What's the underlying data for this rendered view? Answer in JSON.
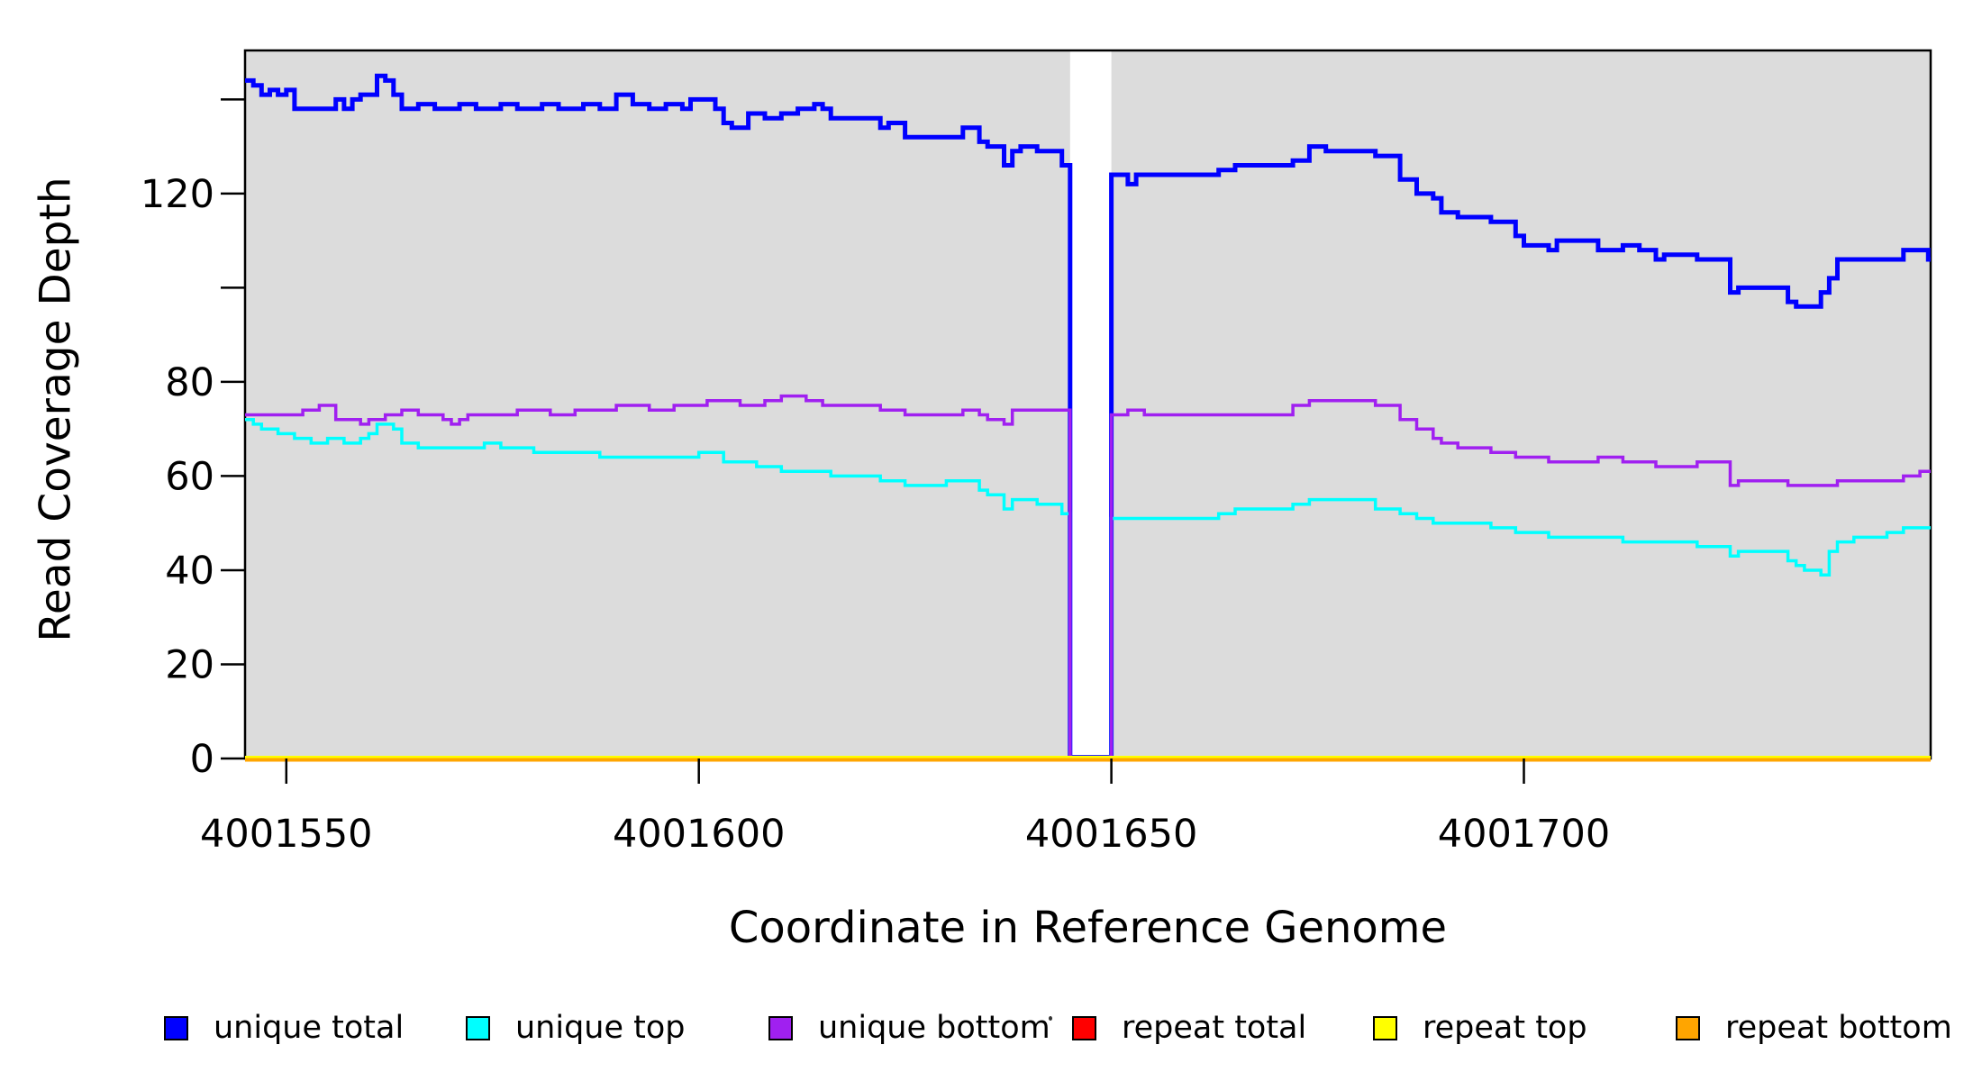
{
  "chart_data": {
    "type": "line",
    "subtype": "step",
    "title": "",
    "xlabel": "Coordinate in Reference Genome",
    "ylabel": "Read Coverage Depth",
    "plot_bg_color": "#DCDCDC",
    "page_bg_color": "#FFFFFF",
    "grid": "off",
    "legend_position": "bottom",
    "x_range": [
      4001545,
      4001749
    ],
    "y_range": [
      0,
      150
    ],
    "x_ticks": [
      {
        "value": 4001550,
        "label": "4001550"
      },
      {
        "value": 4001600,
        "label": "4001600"
      },
      {
        "value": 4001650,
        "label": "4001650"
      },
      {
        "value": 4001700,
        "label": "4001700"
      }
    ],
    "y_ticks": [
      {
        "value": 0,
        "label": "0"
      },
      {
        "value": 20,
        "label": "20"
      },
      {
        "value": 40,
        "label": "40"
      },
      {
        "value": 60,
        "label": "60"
      },
      {
        "value": 80,
        "label": "80"
      },
      {
        "value": 100,
        "label": ""
      },
      {
        "value": 120,
        "label": "120"
      },
      {
        "value": 140,
        "label": ""
      }
    ],
    "coverage_gap": {
      "start": 4001645,
      "end": 4001650
    },
    "series": [
      {
        "name": "unique total",
        "color": "#0000FF",
        "width": 5,
        "points": [
          [
            4001545,
            144
          ],
          [
            4001546,
            143
          ],
          [
            4001547,
            141
          ],
          [
            4001548,
            142
          ],
          [
            4001549,
            141
          ],
          [
            4001550,
            142
          ],
          [
            4001551,
            138
          ],
          [
            4001556,
            140
          ],
          [
            4001557,
            138
          ],
          [
            4001558,
            140
          ],
          [
            4001559,
            141
          ],
          [
            4001561,
            145
          ],
          [
            4001562,
            144
          ],
          [
            4001563,
            141
          ],
          [
            4001564,
            138
          ],
          [
            4001566,
            139
          ],
          [
            4001568,
            138
          ],
          [
            4001571,
            139
          ],
          [
            4001573,
            138
          ],
          [
            4001576,
            139
          ],
          [
            4001578,
            138
          ],
          [
            4001581,
            139
          ],
          [
            4001583,
            138
          ],
          [
            4001586,
            139
          ],
          [
            4001588,
            138
          ],
          [
            4001590,
            141
          ],
          [
            4001592,
            139
          ],
          [
            4001594,
            138
          ],
          [
            4001596,
            139
          ],
          [
            4001598,
            138
          ],
          [
            4001599,
            140
          ],
          [
            4001602,
            138
          ],
          [
            4001603,
            135
          ],
          [
            4001604,
            134
          ],
          [
            4001606,
            137
          ],
          [
            4001608,
            136
          ],
          [
            4001610,
            137
          ],
          [
            4001612,
            138
          ],
          [
            4001614,
            139
          ],
          [
            4001615,
            138
          ],
          [
            4001616,
            136
          ],
          [
            4001622,
            134
          ],
          [
            4001623,
            135
          ],
          [
            4001625,
            132
          ],
          [
            4001632,
            134
          ],
          [
            4001634,
            131
          ],
          [
            4001635,
            130
          ],
          [
            4001637,
            126
          ],
          [
            4001638,
            129
          ],
          [
            4001639,
            130
          ],
          [
            4001641,
            129
          ],
          [
            4001644,
            126
          ],
          [
            4001645,
            0
          ],
          [
            4001650,
            124
          ],
          [
            4001652,
            122
          ],
          [
            4001653,
            124
          ],
          [
            4001663,
            125
          ],
          [
            4001665,
            126
          ],
          [
            4001672,
            127
          ],
          [
            4001674,
            130
          ],
          [
            4001676,
            129
          ],
          [
            4001682,
            128
          ],
          [
            4001685,
            123
          ],
          [
            4001687,
            120
          ],
          [
            4001689,
            119
          ],
          [
            4001690,
            116
          ],
          [
            4001692,
            115
          ],
          [
            4001696,
            114
          ],
          [
            4001699,
            111
          ],
          [
            4001700,
            109
          ],
          [
            4001703,
            108
          ],
          [
            4001704,
            110
          ],
          [
            4001709,
            108
          ],
          [
            4001712,
            109
          ],
          [
            4001714,
            108
          ],
          [
            4001716,
            106
          ],
          [
            4001717,
            107
          ],
          [
            4001721,
            106
          ],
          [
            4001725,
            99
          ],
          [
            4001726,
            100
          ],
          [
            4001732,
            97
          ],
          [
            4001733,
            96
          ],
          [
            4001736,
            99
          ],
          [
            4001737,
            102
          ],
          [
            4001738,
            106
          ],
          [
            4001746,
            108
          ],
          [
            4001749,
            106
          ]
        ]
      },
      {
        "name": "unique top",
        "color": "#00FFFF",
        "width": 3.5,
        "points": [
          [
            4001545,
            72
          ],
          [
            4001546,
            71
          ],
          [
            4001547,
            70
          ],
          [
            4001549,
            69
          ],
          [
            4001551,
            68
          ],
          [
            4001553,
            67
          ],
          [
            4001555,
            68
          ],
          [
            4001557,
            67
          ],
          [
            4001559,
            68
          ],
          [
            4001560,
            69
          ],
          [
            4001561,
            71
          ],
          [
            4001563,
            70
          ],
          [
            4001564,
            67
          ],
          [
            4001566,
            66
          ],
          [
            4001574,
            67
          ],
          [
            4001576,
            66
          ],
          [
            4001580,
            65
          ],
          [
            4001588,
            64
          ],
          [
            4001600,
            65
          ],
          [
            4001603,
            63
          ],
          [
            4001607,
            62
          ],
          [
            4001610,
            61
          ],
          [
            4001616,
            60
          ],
          [
            4001622,
            59
          ],
          [
            4001625,
            58
          ],
          [
            4001630,
            59
          ],
          [
            4001634,
            57
          ],
          [
            4001635,
            56
          ],
          [
            4001637,
            53
          ],
          [
            4001638,
            55
          ],
          [
            4001641,
            54
          ],
          [
            4001644,
            52
          ],
          [
            4001645,
            0
          ],
          [
            4001650,
            51
          ],
          [
            4001663,
            52
          ],
          [
            4001665,
            53
          ],
          [
            4001672,
            54
          ],
          [
            4001674,
            55
          ],
          [
            4001682,
            53
          ],
          [
            4001685,
            52
          ],
          [
            4001687,
            51
          ],
          [
            4001689,
            50
          ],
          [
            4001696,
            49
          ],
          [
            4001699,
            48
          ],
          [
            4001703,
            47
          ],
          [
            4001712,
            46
          ],
          [
            4001721,
            45
          ],
          [
            4001725,
            43
          ],
          [
            4001726,
            44
          ],
          [
            4001732,
            42
          ],
          [
            4001733,
            41
          ],
          [
            4001734,
            40
          ],
          [
            4001736,
            39
          ],
          [
            4001737,
            44
          ],
          [
            4001738,
            46
          ],
          [
            4001740,
            47
          ],
          [
            4001744,
            48
          ],
          [
            4001746,
            49
          ],
          [
            4001749,
            49
          ]
        ]
      },
      {
        "name": "unique bottom",
        "color": "#A020F0",
        "width": 3.5,
        "points": [
          [
            4001545,
            73
          ],
          [
            4001552,
            74
          ],
          [
            4001554,
            75
          ],
          [
            4001556,
            72
          ],
          [
            4001559,
            71
          ],
          [
            4001560,
            72
          ],
          [
            4001562,
            73
          ],
          [
            4001564,
            74
          ],
          [
            4001566,
            73
          ],
          [
            4001569,
            72
          ],
          [
            4001570,
            71
          ],
          [
            4001571,
            72
          ],
          [
            4001572,
            73
          ],
          [
            4001578,
            74
          ],
          [
            4001582,
            73
          ],
          [
            4001585,
            74
          ],
          [
            4001590,
            75
          ],
          [
            4001594,
            74
          ],
          [
            4001597,
            75
          ],
          [
            4001601,
            76
          ],
          [
            4001605,
            75
          ],
          [
            4001608,
            76
          ],
          [
            4001610,
            77
          ],
          [
            4001613,
            76
          ],
          [
            4001615,
            75
          ],
          [
            4001622,
            74
          ],
          [
            4001625,
            73
          ],
          [
            4001632,
            74
          ],
          [
            4001634,
            73
          ],
          [
            4001635,
            72
          ],
          [
            4001637,
            71
          ],
          [
            4001638,
            74
          ],
          [
            4001645,
            0
          ],
          [
            4001650,
            73
          ],
          [
            4001652,
            74
          ],
          [
            4001654,
            73
          ],
          [
            4001672,
            75
          ],
          [
            4001674,
            76
          ],
          [
            4001682,
            75
          ],
          [
            4001685,
            72
          ],
          [
            4001687,
            70
          ],
          [
            4001689,
            68
          ],
          [
            4001690,
            67
          ],
          [
            4001692,
            66
          ],
          [
            4001696,
            65
          ],
          [
            4001699,
            64
          ],
          [
            4001703,
            63
          ],
          [
            4001709,
            64
          ],
          [
            4001712,
            63
          ],
          [
            4001716,
            62
          ],
          [
            4001721,
            63
          ],
          [
            4001725,
            58
          ],
          [
            4001726,
            59
          ],
          [
            4001732,
            58
          ],
          [
            4001738,
            59
          ],
          [
            4001746,
            60
          ],
          [
            4001748,
            61
          ],
          [
            4001749,
            61
          ]
        ]
      },
      {
        "name": "repeat total",
        "color": "#FF0000",
        "width": 3,
        "points": [
          [
            4001545,
            0
          ],
          [
            4001749,
            0
          ]
        ]
      },
      {
        "name": "repeat top",
        "color": "#FFFF00",
        "width": 3,
        "points": [
          [
            4001545,
            0
          ],
          [
            4001749,
            0
          ]
        ]
      },
      {
        "name": "repeat bottom",
        "color": "#FFA500",
        "width": 4,
        "points": [
          [
            4001545,
            0
          ],
          [
            4001749,
            0
          ]
        ]
      }
    ]
  }
}
